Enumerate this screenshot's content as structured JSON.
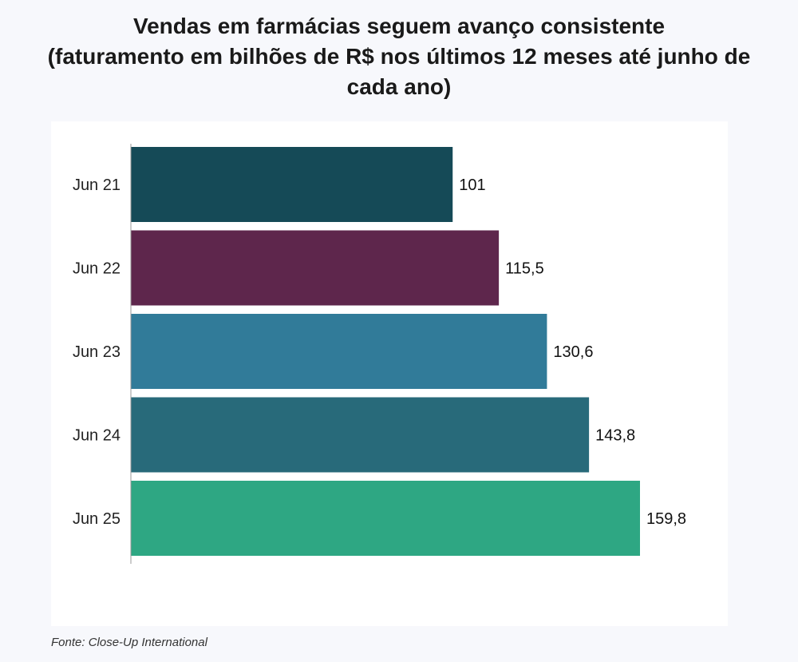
{
  "header": {
    "title_line1": "Vendas em farmácias seguem avanço consistente",
    "title_line2": "(faturamento em bilhões de R$ nos últimos 12 meses até junho de",
    "title_line3": "cada ano)"
  },
  "footer": {
    "source": "Fonte: Close-Up International"
  },
  "chart_data": {
    "type": "bar",
    "orientation": "horizontal",
    "title": "Vendas em farmácias seguem avanço consistente (faturamento em bilhões de R$ nos últimos 12 meses até junho de cada ano)",
    "categories": [
      "Jun 21",
      "Jun 22",
      "Jun 23",
      "Jun 24",
      "Jun 25"
    ],
    "values": [
      101,
      115.5,
      130.6,
      143.8,
      159.8
    ],
    "value_labels": [
      "101",
      "115,5",
      "130,6",
      "143,8",
      "159,8"
    ],
    "colors": [
      "#154a57",
      "#5e264c",
      "#317b99",
      "#286a7a",
      "#2ea783"
    ],
    "xlim": [
      0,
      159.8
    ],
    "grid": false,
    "legend": "none"
  }
}
